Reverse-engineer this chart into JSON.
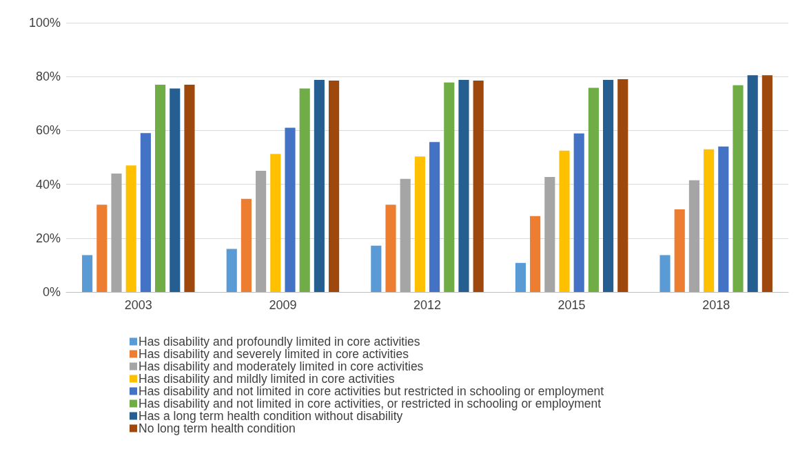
{
  "chart_data": {
    "type": "bar",
    "categories": [
      "2003",
      "2009",
      "2012",
      "2015",
      "2018"
    ],
    "series": [
      {
        "name": "Has disability and profoundly limited in core activities",
        "color": "#5b9bd5",
        "values": [
          13.7,
          16,
          17.2,
          10.8,
          13.7
        ]
      },
      {
        "name": "Has disability and severely limited in core activities",
        "color": "#ed7d31",
        "values": [
          32.4,
          34.6,
          32.4,
          28.2,
          30.7
        ]
      },
      {
        "name": "Has disability and moderately limited in core activities",
        "color": "#a5a5a5",
        "values": [
          44,
          45,
          42,
          42.7,
          41.5
        ]
      },
      {
        "name": "Has disability and mildly limited in core activities",
        "color": "#ffc000",
        "values": [
          47,
          51.3,
          50.3,
          52.5,
          53
        ]
      },
      {
        "name": "Has disability and not limited in core activities but restricted in schooling or employment",
        "color": "#4472c4",
        "values": [
          59,
          61,
          55.7,
          58.9,
          54
        ]
      },
      {
        "name": "Has disability and not limited in core activities, or restricted in schooling or employment",
        "color": "#70ad47",
        "values": [
          77,
          75.6,
          77.8,
          75.8,
          76.8
        ]
      },
      {
        "name": "Has a long term health condition without disability",
        "color": "#255e91",
        "values": [
          75.6,
          78.8,
          78.8,
          78.8,
          80.5
        ]
      },
      {
        "name": "No long term health condition",
        "color": "#9e480e",
        "values": [
          77,
          78.5,
          78.5,
          79,
          80.5
        ]
      }
    ],
    "ylim": [
      0,
      100
    ],
    "yticks": [
      {
        "value": 0,
        "label": "0%"
      },
      {
        "value": 20,
        "label": "20%"
      },
      {
        "value": 40,
        "label": "40%"
      },
      {
        "value": 60,
        "label": "60%"
      },
      {
        "value": 80,
        "label": "80%"
      },
      {
        "value": 100,
        "label": "100%"
      }
    ],
    "grid": "y",
    "legend": "bottom"
  }
}
